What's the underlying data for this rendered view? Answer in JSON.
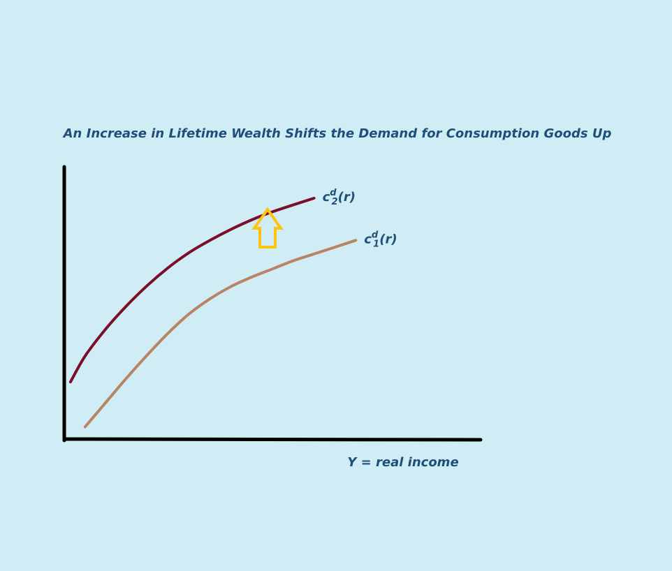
{
  "chart_data": {
    "type": "line",
    "title": "An Increase in Lifetime Wealth Shifts the Demand for Consumption Goods Up",
    "xlabel": "Y = real income",
    "ylabel": "",
    "xlim": [
      0,
      100
    ],
    "ylim": [
      0,
      100
    ],
    "grid": false,
    "legend": "none",
    "series": [
      {
        "name": "cd2(r)",
        "label_main": "c",
        "label_sup": "d",
        "label_sub": "2",
        "label_tail": "(r)",
        "color": "#7b0f2b",
        "x": [
          1.5,
          5,
          10,
          15,
          20,
          25,
          30,
          35,
          40,
          45,
          50,
          60
        ],
        "y": [
          21,
          30.5,
          40.5,
          49,
          56.5,
          63,
          68.5,
          73,
          77,
          80.5,
          83.5,
          88.5
        ]
      },
      {
        "name": "cd1(r)",
        "label_main": "c",
        "label_sup": "d",
        "label_sub": "1",
        "label_tail": "(r)",
        "color": "#b98466",
        "x": [
          5,
          10,
          15,
          20,
          25,
          30,
          35,
          40,
          45,
          50,
          55,
          60,
          65,
          70
        ],
        "y": [
          4.5,
          13.5,
          22.5,
          31,
          39,
          46,
          51.5,
          56,
          59.5,
          62.5,
          65.5,
          68,
          70.5,
          73
        ]
      }
    ],
    "annotations": [
      {
        "type": "arrow",
        "direction": "up",
        "color": "#ffc20e"
      }
    ]
  }
}
